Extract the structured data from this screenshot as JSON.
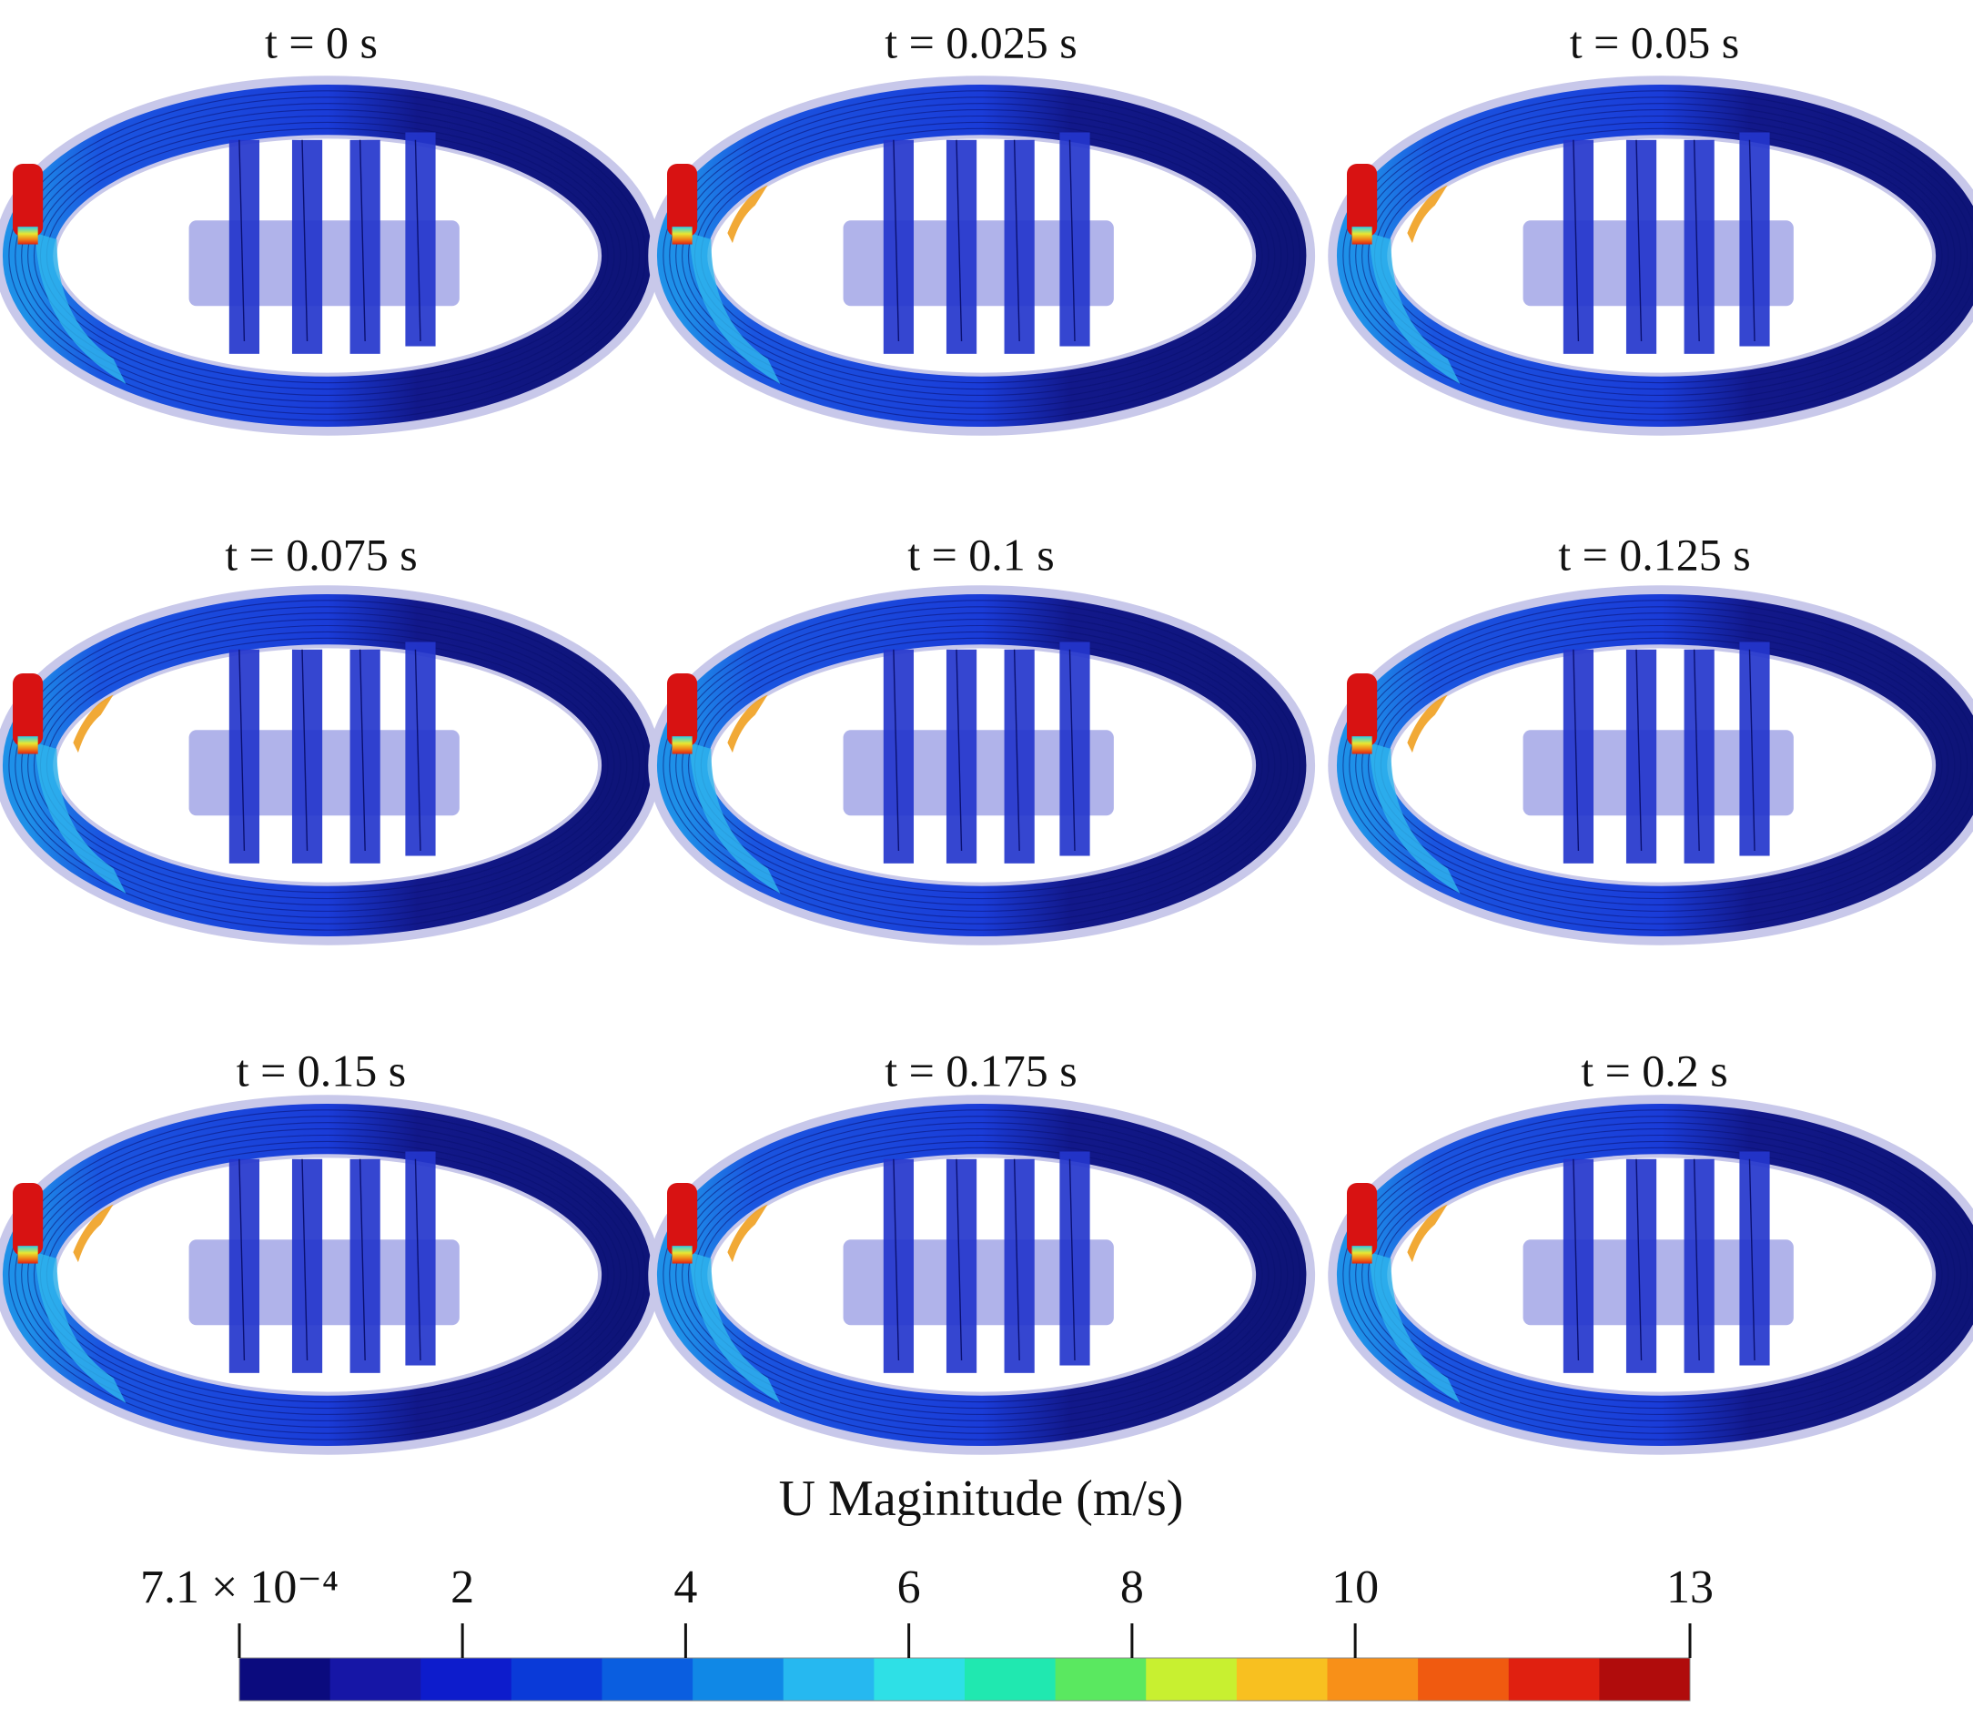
{
  "panels": [
    {
      "time_label": "t = 0 s"
    },
    {
      "time_label": "t = 0.025 s"
    },
    {
      "time_label": "t = 0.05 s"
    },
    {
      "time_label": "t = 0.075 s"
    },
    {
      "time_label": "t = 0.1 s"
    },
    {
      "time_label": "t = 0.125 s"
    },
    {
      "time_label": "t = 0.15 s"
    },
    {
      "time_label": "t = 0.175 s"
    },
    {
      "time_label": "t = 0.2 s"
    }
  ],
  "colorbar": {
    "title": "U Maginitude (m/s)",
    "lim": [
      0.00071,
      13
    ],
    "ticks": [
      {
        "value": 0.00071,
        "label": "7.1 × 10⁻⁴"
      },
      2,
      4,
      6,
      8,
      10,
      13
    ],
    "colors": [
      "#0b0b7e",
      "#1616a6",
      "#0d1ccc",
      "#0a3ad8",
      "#0a5ee0",
      "#1088e6",
      "#26b8f0",
      "#2ee0e6",
      "#20e8b0",
      "#5ae860",
      "#c8f030",
      "#f8c020",
      "#f89018",
      "#f05a10",
      "#e02010",
      "#b00c0c"
    ]
  }
}
